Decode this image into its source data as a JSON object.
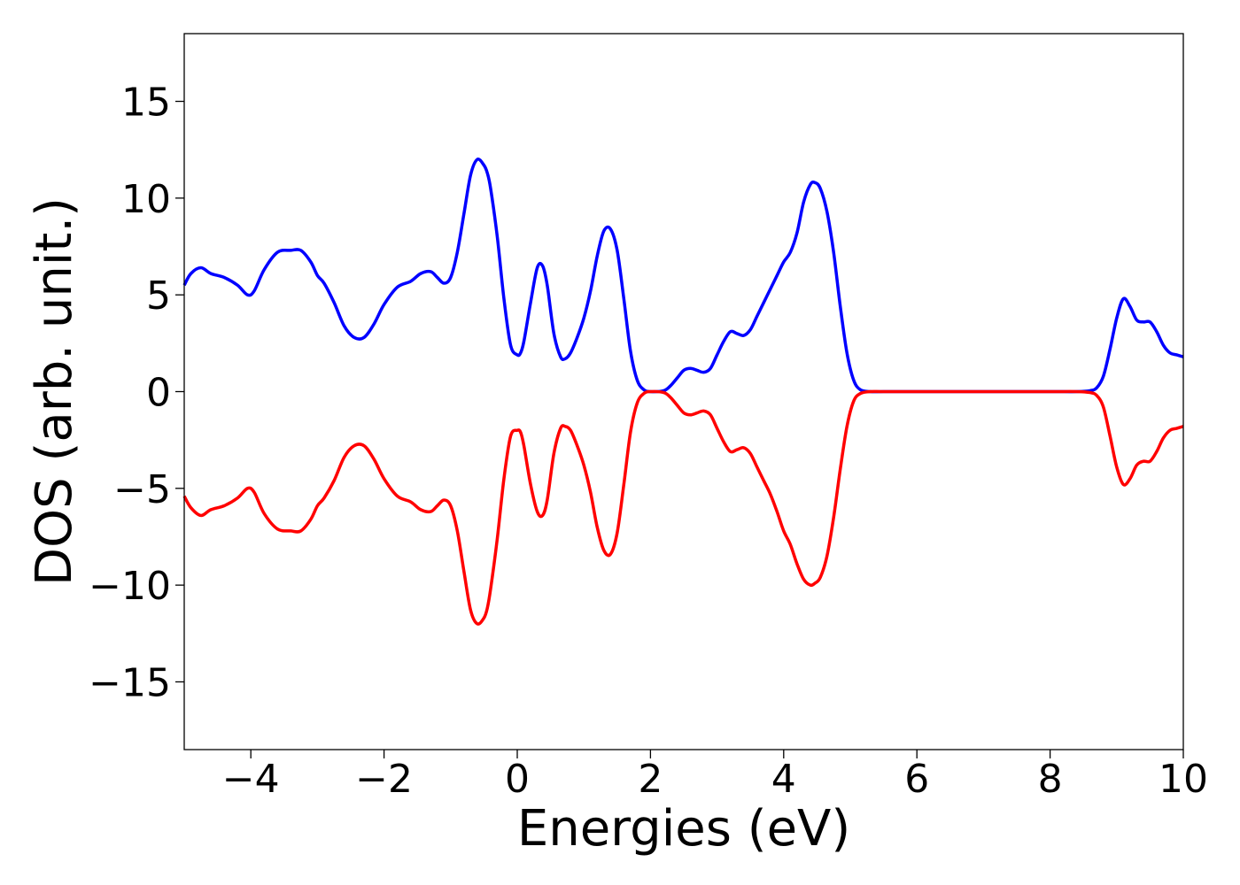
{
  "chart_data": {
    "type": "line",
    "title": "",
    "xlabel": "Energies (eV)",
    "ylabel": "DOS (arb. unit.)",
    "xlim": [
      -5,
      10
    ],
    "ylim": [
      -18.5,
      18.5
    ],
    "xticks": [
      -4,
      -2,
      0,
      2,
      4,
      6,
      8,
      10
    ],
    "yticks": [
      -15,
      -10,
      -5,
      0,
      5,
      10,
      15
    ],
    "grid": false,
    "legend": "none",
    "series": [
      {
        "color": "#0000ff",
        "x": [
          -5.0,
          -4.9,
          -4.75,
          -4.6,
          -4.4,
          -4.2,
          -4.05,
          -3.95,
          -3.8,
          -3.6,
          -3.4,
          -3.25,
          -3.1,
          -3.0,
          -2.9,
          -2.75,
          -2.6,
          -2.45,
          -2.3,
          -2.15,
          -2.0,
          -1.8,
          -1.6,
          -1.45,
          -1.3,
          -1.2,
          -1.1,
          -1.0,
          -0.9,
          -0.8,
          -0.7,
          -0.6,
          -0.5,
          -0.45,
          -0.4,
          -0.3,
          -0.2,
          -0.1,
          0.0,
          0.05,
          0.1,
          0.2,
          0.3,
          0.38,
          0.45,
          0.55,
          0.65,
          0.72,
          0.8,
          0.9,
          1.0,
          1.1,
          1.2,
          1.3,
          1.4,
          1.5,
          1.6,
          1.7,
          1.8,
          1.9,
          2.0,
          2.2,
          2.3,
          2.4,
          2.5,
          2.6,
          2.7,
          2.8,
          2.9,
          3.0,
          3.1,
          3.2,
          3.3,
          3.4,
          3.5,
          3.6,
          3.7,
          3.8,
          3.9,
          4.0,
          4.1,
          4.2,
          4.3,
          4.4,
          4.47,
          4.55,
          4.65,
          4.75,
          4.85,
          4.95,
          5.05,
          5.15,
          5.3,
          5.5,
          6.0,
          7.0,
          8.0,
          8.4,
          8.6,
          8.7,
          8.8,
          8.9,
          9.0,
          9.1,
          9.2,
          9.3,
          9.4,
          9.5,
          9.6,
          9.7,
          9.8,
          9.9,
          10.0
        ],
        "y": [
          5.5,
          6.1,
          6.4,
          6.1,
          5.9,
          5.5,
          5.0,
          5.2,
          6.3,
          7.2,
          7.3,
          7.3,
          6.7,
          6.0,
          5.6,
          4.6,
          3.4,
          2.8,
          2.8,
          3.5,
          4.5,
          5.4,
          5.7,
          6.1,
          6.2,
          5.9,
          5.6,
          5.9,
          7.2,
          9.2,
          11.2,
          12.0,
          11.7,
          11.3,
          10.5,
          8.0,
          4.8,
          2.4,
          1.9,
          2.0,
          2.6,
          4.6,
          6.4,
          6.5,
          5.5,
          3.0,
          1.8,
          1.7,
          2.0,
          2.8,
          3.8,
          5.2,
          7.0,
          8.3,
          8.4,
          7.3,
          4.8,
          2.1,
          0.6,
          0.1,
          0.0,
          0.05,
          0.3,
          0.7,
          1.1,
          1.2,
          1.1,
          1.0,
          1.2,
          1.9,
          2.6,
          3.1,
          3.0,
          2.9,
          3.2,
          3.9,
          4.6,
          5.3,
          6.0,
          6.7,
          7.2,
          8.2,
          9.8,
          10.7,
          10.8,
          10.5,
          9.3,
          7.2,
          4.4,
          2.0,
          0.6,
          0.1,
          0.0,
          0.0,
          0.0,
          0.0,
          0.0,
          0.0,
          0.05,
          0.2,
          0.8,
          2.2,
          3.8,
          4.8,
          4.4,
          3.7,
          3.6,
          3.6,
          3.1,
          2.4,
          2.0,
          1.9,
          1.8
        ]
      },
      {
        "color": "#ff0000",
        "x": [
          -5.0,
          -4.9,
          -4.75,
          -4.6,
          -4.4,
          -4.2,
          -4.05,
          -3.95,
          -3.8,
          -3.6,
          -3.4,
          -3.25,
          -3.1,
          -3.0,
          -2.9,
          -2.75,
          -2.6,
          -2.45,
          -2.3,
          -2.15,
          -2.0,
          -1.8,
          -1.6,
          -1.45,
          -1.3,
          -1.2,
          -1.1,
          -1.0,
          -0.9,
          -0.8,
          -0.7,
          -0.6,
          -0.5,
          -0.45,
          -0.4,
          -0.3,
          -0.2,
          -0.1,
          0.0,
          0.05,
          0.1,
          0.2,
          0.3,
          0.38,
          0.45,
          0.55,
          0.65,
          0.72,
          0.8,
          0.9,
          1.0,
          1.1,
          1.2,
          1.3,
          1.4,
          1.5,
          1.6,
          1.7,
          1.8,
          1.9,
          2.0,
          2.2,
          2.3,
          2.4,
          2.5,
          2.6,
          2.7,
          2.8,
          2.9,
          3.0,
          3.1,
          3.2,
          3.3,
          3.4,
          3.5,
          3.6,
          3.7,
          3.8,
          3.9,
          4.0,
          4.1,
          4.2,
          4.3,
          4.4,
          4.47,
          4.55,
          4.65,
          4.75,
          4.85,
          4.95,
          5.05,
          5.15,
          5.3,
          5.5,
          6.0,
          7.0,
          8.0,
          8.4,
          8.6,
          8.7,
          8.8,
          8.9,
          9.0,
          9.1,
          9.2,
          9.3,
          9.4,
          9.5,
          9.6,
          9.7,
          9.8,
          9.9,
          10.0
        ],
        "y": [
          -5.4,
          -6.0,
          -6.4,
          -6.1,
          -5.9,
          -5.5,
          -5.0,
          -5.2,
          -6.3,
          -7.1,
          -7.2,
          -7.2,
          -6.6,
          -5.9,
          -5.5,
          -4.6,
          -3.4,
          -2.8,
          -2.8,
          -3.5,
          -4.5,
          -5.4,
          -5.7,
          -6.1,
          -6.2,
          -5.9,
          -5.6,
          -5.9,
          -7.2,
          -9.3,
          -11.3,
          -12.0,
          -11.7,
          -11.2,
          -10.2,
          -7.6,
          -4.5,
          -2.3,
          -2.0,
          -2.1,
          -2.8,
          -4.8,
          -6.2,
          -6.4,
          -5.6,
          -3.2,
          -1.9,
          -1.8,
          -2.0,
          -2.8,
          -3.8,
          -5.2,
          -7.0,
          -8.2,
          -8.4,
          -7.3,
          -4.8,
          -2.1,
          -0.6,
          -0.1,
          0.0,
          -0.05,
          -0.3,
          -0.7,
          -1.1,
          -1.2,
          -1.1,
          -1.0,
          -1.2,
          -1.9,
          -2.6,
          -3.1,
          -3.0,
          -2.9,
          -3.2,
          -3.9,
          -4.6,
          -5.3,
          -6.2,
          -7.2,
          -7.9,
          -8.9,
          -9.7,
          -10.0,
          -9.9,
          -9.6,
          -8.5,
          -6.5,
          -4.0,
          -1.8,
          -0.5,
          -0.1,
          0.0,
          0.0,
          0.0,
          0.0,
          0.0,
          0.0,
          -0.05,
          -0.2,
          -0.8,
          -2.3,
          -3.9,
          -4.8,
          -4.5,
          -3.8,
          -3.6,
          -3.6,
          -3.1,
          -2.4,
          -2.0,
          -1.9,
          -1.8
        ]
      }
    ]
  }
}
